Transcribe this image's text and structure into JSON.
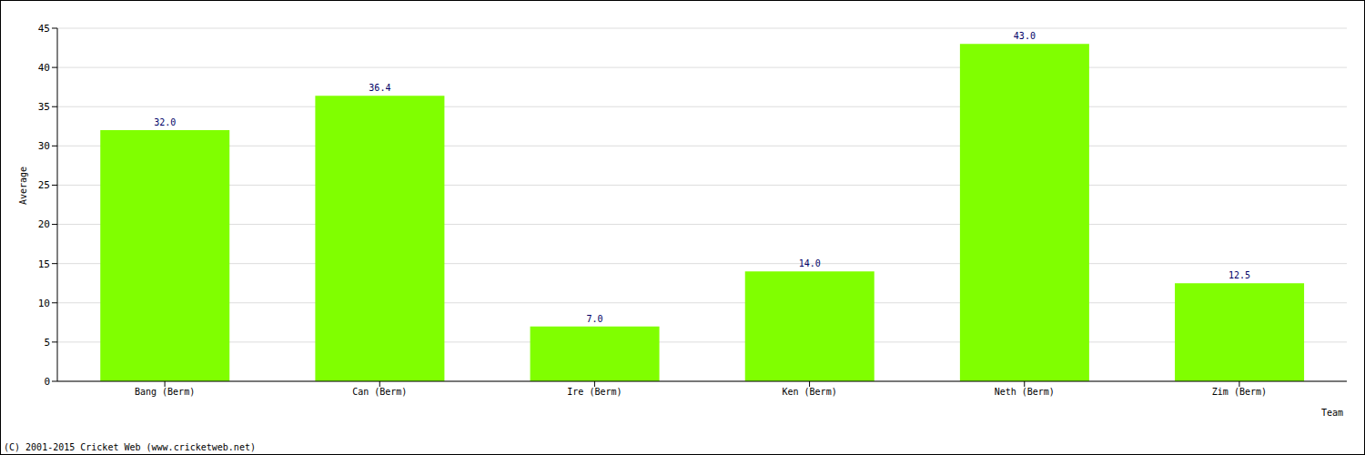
{
  "chart_data": {
    "type": "bar",
    "categories": [
      "Bang (Berm)",
      "Can (Berm)",
      "Ire (Berm)",
      "Ken (Berm)",
      "Neth (Berm)",
      "Zim (Berm)"
    ],
    "values": [
      32.0,
      36.4,
      7.0,
      14.0,
      43.0,
      12.5
    ],
    "value_labels": [
      "32.0",
      "36.4",
      "7.0",
      "14.0",
      "43.0",
      "12.5"
    ],
    "data_labels": true,
    "color": "#80ff00",
    "x_label": "Team",
    "y_label": "Average",
    "ylim": [
      0,
      45
    ],
    "yticks": [
      0,
      5,
      10,
      15,
      20,
      25,
      30,
      35,
      40,
      45
    ],
    "grid": true,
    "annotations": [
      "(C) 2001-2015 Cricket Web (www.cricketweb.net)"
    ]
  }
}
